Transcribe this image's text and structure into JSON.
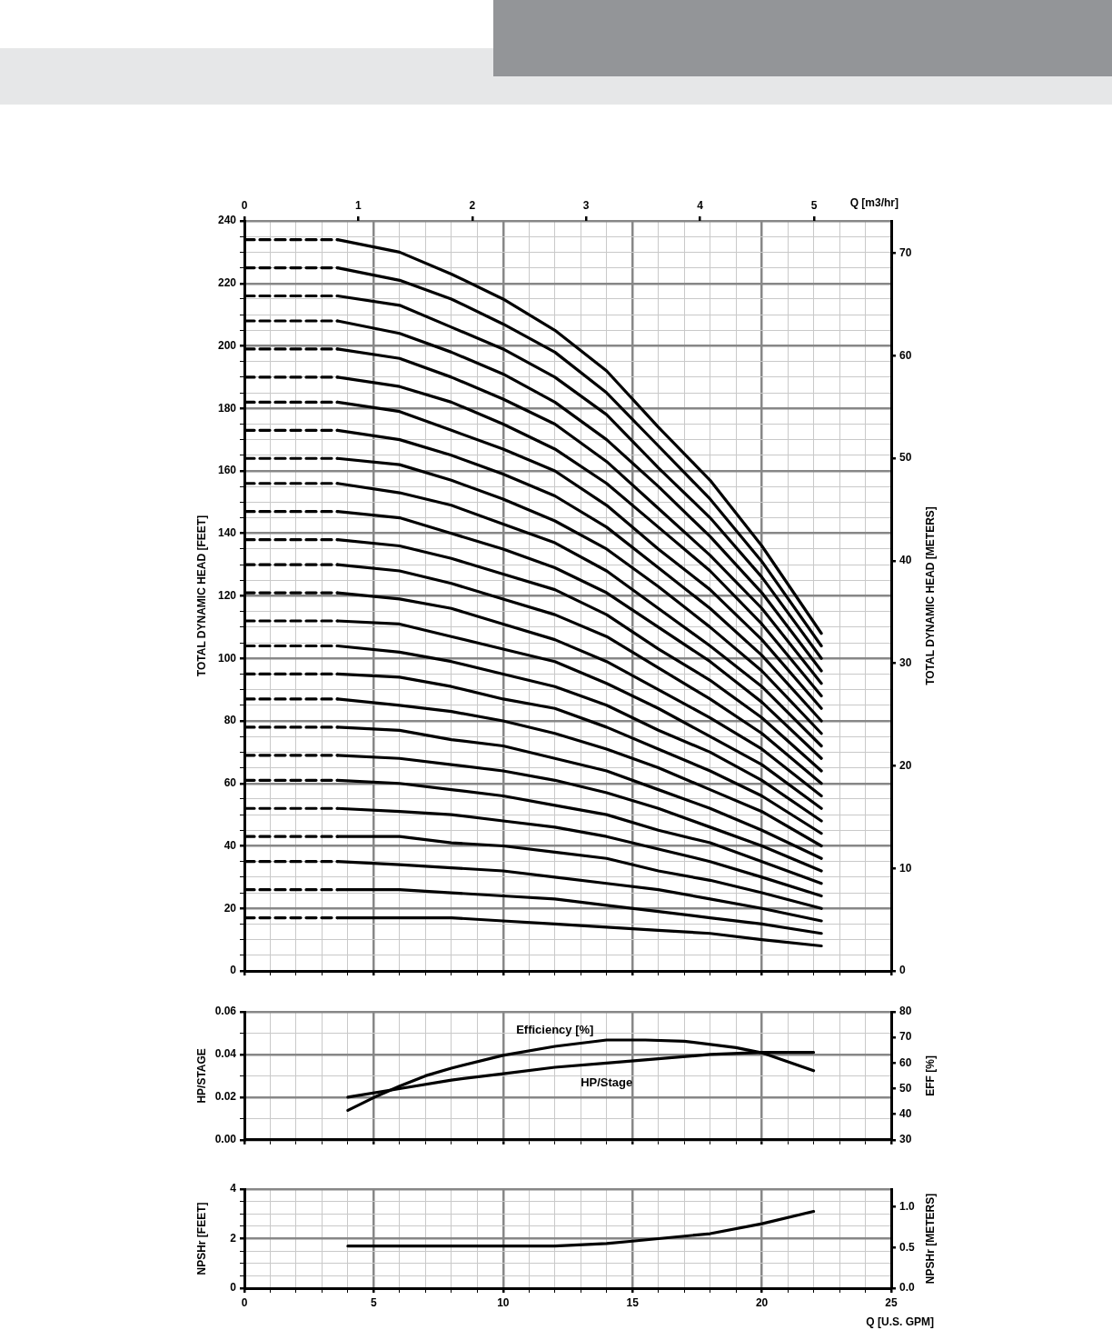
{
  "chart_data": [
    {
      "type": "line",
      "ylabel": "TOTAL DYNAMIC HEAD [FEET]",
      "y2label": "TOTAL DYNAMIC HEAD [METERS]",
      "x2label": "Q [m3/hr]",
      "grid": true,
      "marker": "none",
      "tick_labels": "y",
      "xlim": [
        0,
        25
      ],
      "xticks": [
        0,
        {
          "value": 1,
          "label": null
        },
        {
          "value": 2,
          "label": null
        },
        {
          "value": 3,
          "label": null
        },
        {
          "value": 4,
          "label": null
        },
        5,
        {
          "value": 6,
          "label": null
        },
        {
          "value": 7,
          "label": null
        },
        {
          "value": 8,
          "label": null
        },
        {
          "value": 9,
          "label": null
        },
        10,
        {
          "value": 11,
          "label": null
        },
        {
          "value": 12,
          "label": null
        },
        {
          "value": 13,
          "label": null
        },
        {
          "value": 14,
          "label": null
        },
        15,
        {
          "value": 16,
          "label": null
        },
        {
          "value": 17,
          "label": null
        },
        {
          "value": 18,
          "label": null
        },
        {
          "value": 19,
          "label": null
        },
        20,
        {
          "value": 21,
          "label": null
        },
        {
          "value": 22,
          "label": null
        },
        {
          "value": 23,
          "label": null
        },
        {
          "value": 24,
          "label": null
        },
        25
      ],
      "x2lim": [
        0,
        5.678
      ],
      "x2ticks": [
        0,
        1,
        2,
        3,
        4,
        5
      ],
      "ylim": [
        0,
        240
      ],
      "yticks": [
        0,
        {
          "value": 5,
          "label": null
        },
        {
          "value": 10,
          "label": null
        },
        {
          "value": 15,
          "label": null
        },
        20,
        {
          "value": 25,
          "label": null
        },
        {
          "value": 30,
          "label": null
        },
        {
          "value": 35,
          "label": null
        },
        40,
        {
          "value": 45,
          "label": null
        },
        {
          "value": 50,
          "label": null
        },
        {
          "value": 55,
          "label": null
        },
        60,
        {
          "value": 65,
          "label": null
        },
        {
          "value": 70,
          "label": null
        },
        {
          "value": 75,
          "label": null
        },
        80,
        {
          "value": 85,
          "label": null
        },
        {
          "value": 90,
          "label": null
        },
        {
          "value": 95,
          "label": null
        },
        100,
        {
          "value": 105,
          "label": null
        },
        {
          "value": 110,
          "label": null
        },
        {
          "value": 115,
          "label": null
        },
        120,
        {
          "value": 125,
          "label": null
        },
        {
          "value": 130,
          "label": null
        },
        {
          "value": 135,
          "label": null
        },
        140,
        {
          "value": 145,
          "label": null
        },
        {
          "value": 150,
          "label": null
        },
        {
          "value": 155,
          "label": null
        },
        160,
        {
          "value": 165,
          "label": null
        },
        {
          "value": 170,
          "label": null
        },
        {
          "value": 175,
          "label": null
        },
        180,
        {
          "value": 185,
          "label": null
        },
        {
          "value": 190,
          "label": null
        },
        {
          "value": 195,
          "label": null
        },
        200,
        {
          "value": 205,
          "label": null
        },
        {
          "value": 210,
          "label": null
        },
        {
          "value": 215,
          "label": null
        },
        220,
        {
          "value": 225,
          "label": null
        },
        {
          "value": 230,
          "label": null
        },
        {
          "value": 235,
          "label": null
        },
        240
      ],
      "y2lim": [
        0,
        73.15
      ],
      "y2ticks": [
        0,
        10,
        20,
        30,
        40,
        50,
        60,
        70
      ],
      "x": [
        3.6,
        6,
        8,
        10,
        12,
        14,
        16,
        18,
        20,
        22.3
      ],
      "series": [
        {
          "color": "#000000",
          "values": [
            17,
            17,
            17,
            16,
            15,
            14,
            13,
            12,
            10,
            8
          ]
        },
        {
          "color": "#000000",
          "values": [
            26,
            26,
            25,
            24,
            23,
            21,
            19,
            17,
            15,
            12
          ]
        },
        {
          "color": "#000000",
          "values": [
            35,
            34,
            33,
            32,
            30,
            28,
            26,
            23,
            20,
            16
          ]
        },
        {
          "color": "#000000",
          "values": [
            43,
            43,
            41,
            40,
            38,
            36,
            32,
            29,
            25,
            20
          ]
        },
        {
          "color": "#000000",
          "values": [
            52,
            51,
            50,
            48,
            46,
            43,
            39,
            35,
            30,
            24
          ]
        },
        {
          "color": "#000000",
          "values": [
            61,
            60,
            58,
            56,
            53,
            50,
            45,
            41,
            35,
            28
          ]
        },
        {
          "color": "#000000",
          "values": [
            69,
            68,
            66,
            64,
            61,
            57,
            52,
            46,
            40,
            32
          ]
        },
        {
          "color": "#000000",
          "values": [
            78,
            77,
            74,
            72,
            68,
            64,
            58,
            52,
            45,
            36
          ]
        },
        {
          "color": "#000000",
          "values": [
            87,
            85,
            83,
            80,
            76,
            71,
            65,
            58,
            51,
            40
          ]
        },
        {
          "color": "#000000",
          "values": [
            95,
            94,
            91,
            87,
            84,
            78,
            71,
            64,
            56,
            44
          ]
        },
        {
          "color": "#000000",
          "values": [
            104,
            102,
            99,
            95,
            91,
            85,
            77,
            70,
            61,
            48
          ]
        },
        {
          "color": "#000000",
          "values": [
            112,
            111,
            107,
            103,
            99,
            92,
            84,
            75,
            66,
            52
          ]
        },
        {
          "color": "#000000",
          "values": [
            121,
            119,
            116,
            111,
            106,
            99,
            90,
            81,
            71,
            56
          ]
        },
        {
          "color": "#000000",
          "values": [
            130,
            128,
            124,
            119,
            114,
            107,
            97,
            87,
            76,
            60
          ]
        },
        {
          "color": "#000000",
          "values": [
            138,
            136,
            132,
            127,
            122,
            114,
            103,
            93,
            81,
            64
          ]
        },
        {
          "color": "#000000",
          "values": [
            147,
            145,
            140,
            135,
            129,
            121,
            110,
            99,
            86,
            68
          ]
        },
        {
          "color": "#000000",
          "values": [
            156,
            153,
            149,
            143,
            137,
            128,
            116,
            104,
            91,
            72
          ]
        },
        {
          "color": "#000000",
          "values": [
            164,
            162,
            157,
            151,
            144,
            135,
            123,
            110,
            96,
            76
          ]
        },
        {
          "color": "#000000",
          "values": [
            173,
            170,
            165,
            159,
            152,
            142,
            129,
            116,
            101,
            80
          ]
        },
        {
          "color": "#000000",
          "values": [
            182,
            179,
            173,
            167,
            160,
            149,
            135,
            122,
            106,
            84
          ]
        },
        {
          "color": "#000000",
          "values": [
            190,
            187,
            182,
            175,
            167,
            156,
            142,
            128,
            111,
            88
          ]
        },
        {
          "color": "#000000",
          "values": [
            199,
            196,
            190,
            183,
            175,
            163,
            148,
            133,
            116,
            92
          ]
        },
        {
          "color": "#000000",
          "values": [
            208,
            204,
            198,
            191,
            182,
            170,
            155,
            139,
            121,
            96
          ]
        },
        {
          "color": "#000000",
          "values": [
            216,
            213,
            206,
            199,
            190,
            178,
            161,
            145,
            126,
            100
          ]
        },
        {
          "color": "#000000",
          "values": [
            225,
            221,
            215,
            207,
            198,
            185,
            168,
            151,
            131,
            104
          ]
        },
        {
          "color": "#000000",
          "values": [
            234,
            230,
            223,
            215,
            205,
            192,
            174,
            157,
            136,
            108
          ]
        },
        {
          "color": "#000000",
          "line_style": "dashed",
          "x": [
            0,
            3.6
          ],
          "values": [
            17,
            17
          ]
        },
        {
          "color": "#000000",
          "line_style": "dashed",
          "x": [
            0,
            3.6
          ],
          "values": [
            26,
            26
          ]
        },
        {
          "color": "#000000",
          "line_style": "dashed",
          "x": [
            0,
            3.6
          ],
          "values": [
            35,
            35
          ]
        },
        {
          "color": "#000000",
          "line_style": "dashed",
          "x": [
            0,
            3.6
          ],
          "values": [
            43,
            43
          ]
        },
        {
          "color": "#000000",
          "line_style": "dashed",
          "x": [
            0,
            3.6
          ],
          "values": [
            52,
            52
          ]
        },
        {
          "color": "#000000",
          "line_style": "dashed",
          "x": [
            0,
            3.6
          ],
          "values": [
            61,
            61
          ]
        },
        {
          "color": "#000000",
          "line_style": "dashed",
          "x": [
            0,
            3.6
          ],
          "values": [
            69,
            69
          ]
        },
        {
          "color": "#000000",
          "line_style": "dashed",
          "x": [
            0,
            3.6
          ],
          "values": [
            78,
            78
          ]
        },
        {
          "color": "#000000",
          "line_style": "dashed",
          "x": [
            0,
            3.6
          ],
          "values": [
            87,
            87
          ]
        },
        {
          "color": "#000000",
          "line_style": "dashed",
          "x": [
            0,
            3.6
          ],
          "values": [
            95,
            95
          ]
        },
        {
          "color": "#000000",
          "line_style": "dashed",
          "x": [
            0,
            3.6
          ],
          "values": [
            104,
            104
          ]
        },
        {
          "color": "#000000",
          "line_style": "dashed",
          "x": [
            0,
            3.6
          ],
          "values": [
            112,
            112
          ]
        },
        {
          "color": "#000000",
          "line_style": "dashed",
          "x": [
            0,
            3.6
          ],
          "values": [
            121,
            121
          ]
        },
        {
          "color": "#000000",
          "line_style": "dashed",
          "x": [
            0,
            3.6
          ],
          "values": [
            130,
            130
          ]
        },
        {
          "color": "#000000",
          "line_style": "dashed",
          "x": [
            0,
            3.6
          ],
          "values": [
            138,
            138
          ]
        },
        {
          "color": "#000000",
          "line_style": "dashed",
          "x": [
            0,
            3.6
          ],
          "values": [
            147,
            147
          ]
        },
        {
          "color": "#000000",
          "line_style": "dashed",
          "x": [
            0,
            3.6
          ],
          "values": [
            156,
            156
          ]
        },
        {
          "color": "#000000",
          "line_style": "dashed",
          "x": [
            0,
            3.6
          ],
          "values": [
            164,
            164
          ]
        },
        {
          "color": "#000000",
          "line_style": "dashed",
          "x": [
            0,
            3.6
          ],
          "values": [
            173,
            173
          ]
        },
        {
          "color": "#000000",
          "line_style": "dashed",
          "x": [
            0,
            3.6
          ],
          "values": [
            182,
            182
          ]
        },
        {
          "color": "#000000",
          "line_style": "dashed",
          "x": [
            0,
            3.6
          ],
          "values": [
            190,
            190
          ]
        },
        {
          "color": "#000000",
          "line_style": "dashed",
          "x": [
            0,
            3.6
          ],
          "values": [
            199,
            199
          ]
        },
        {
          "color": "#000000",
          "line_style": "dashed",
          "x": [
            0,
            3.6
          ],
          "values": [
            208,
            208
          ]
        },
        {
          "color": "#000000",
          "line_style": "dashed",
          "x": [
            0,
            3.6
          ],
          "values": [
            216,
            216
          ]
        },
        {
          "color": "#000000",
          "line_style": "dashed",
          "x": [
            0,
            3.6
          ],
          "values": [
            225,
            225
          ]
        },
        {
          "color": "#000000",
          "line_style": "dashed",
          "x": [
            0,
            3.6
          ],
          "values": [
            234,
            234
          ]
        }
      ]
    },
    {
      "type": "line",
      "ylabel": "HP/STAGE",
      "y2label": "EFF [%]",
      "grid": true,
      "marker": "none",
      "tick_labels": "y",
      "xlim": [
        0,
        25
      ],
      "xticks": [
        0,
        {
          "value": 1,
          "label": null
        },
        {
          "value": 2,
          "label": null
        },
        {
          "value": 3,
          "label": null
        },
        {
          "value": 4,
          "label": null
        },
        5,
        {
          "value": 6,
          "label": null
        },
        {
          "value": 7,
          "label": null
        },
        {
          "value": 8,
          "label": null
        },
        {
          "value": 9,
          "label": null
        },
        10,
        {
          "value": 11,
          "label": null
        },
        {
          "value": 12,
          "label": null
        },
        {
          "value": 13,
          "label": null
        },
        {
          "value": 14,
          "label": null
        },
        15,
        {
          "value": 16,
          "label": null
        },
        {
          "value": 17,
          "label": null
        },
        {
          "value": 18,
          "label": null
        },
        {
          "value": 19,
          "label": null
        },
        20,
        {
          "value": 21,
          "label": null
        },
        {
          "value": 22,
          "label": null
        },
        {
          "value": 23,
          "label": null
        },
        {
          "value": 24,
          "label": null
        },
        25
      ],
      "ylim": [
        0,
        0.06
      ],
      "yticks": [
        {
          "value": 0,
          "label": "0.00"
        },
        {
          "value": 0.01,
          "label": null
        },
        {
          "value": 0.02,
          "label": "0.02"
        },
        {
          "value": 0.03,
          "label": null
        },
        {
          "value": 0.04,
          "label": "0.04"
        },
        {
          "value": 0.05,
          "label": null
        },
        {
          "value": 0.06,
          "label": "0.06"
        }
      ],
      "y2lim": [
        30,
        80
      ],
      "y2ticks": [
        30,
        40,
        50,
        60,
        70,
        80
      ],
      "series": [
        {
          "name": "Efficiency [%]",
          "color": "#000000",
          "axis": "y2",
          "x": [
            4,
            5,
            6,
            7,
            8,
            10,
            12,
            14,
            15.5,
            17,
            19,
            20,
            22
          ],
          "values": [
            41.5,
            46.5,
            51,
            55,
            58,
            63,
            66.5,
            69,
            69,
            68.5,
            66,
            64,
            57
          ]
        },
        {
          "name": "HP/Stage",
          "color": "#000000",
          "x": [
            4,
            6,
            8,
            10,
            12,
            14,
            16,
            18,
            20,
            22
          ],
          "values": [
            0.02,
            0.024,
            0.028,
            0.031,
            0.034,
            0.036,
            0.038,
            0.04,
            0.041,
            0.041
          ]
        }
      ]
    },
    {
      "type": "line",
      "ylabel": "NPSHr [FEET]",
      "y2label": "NPSHr [METERS]",
      "xlabel": "Q [U.S. GPM]",
      "grid": true,
      "marker": "none",
      "xlim": [
        0,
        25
      ],
      "xticks": [
        0,
        {
          "value": 1,
          "label": null
        },
        {
          "value": 2,
          "label": null
        },
        {
          "value": 3,
          "label": null
        },
        {
          "value": 4,
          "label": null
        },
        5,
        {
          "value": 6,
          "label": null
        },
        {
          "value": 7,
          "label": null
        },
        {
          "value": 8,
          "label": null
        },
        {
          "value": 9,
          "label": null
        },
        10,
        {
          "value": 11,
          "label": null
        },
        {
          "value": 12,
          "label": null
        },
        {
          "value": 13,
          "label": null
        },
        {
          "value": 14,
          "label": null
        },
        15,
        {
          "value": 16,
          "label": null
        },
        {
          "value": 17,
          "label": null
        },
        {
          "value": 18,
          "label": null
        },
        {
          "value": 19,
          "label": null
        },
        20,
        {
          "value": 21,
          "label": null
        },
        {
          "value": 22,
          "label": null
        },
        {
          "value": 23,
          "label": null
        },
        {
          "value": 24,
          "label": null
        },
        25
      ],
      "ylim": [
        0,
        4
      ],
      "yticks": [
        0,
        {
          "value": 0.5,
          "label": null
        },
        {
          "value": 1,
          "label": null
        },
        {
          "value": 1.5,
          "label": null
        },
        2,
        {
          "value": 2.5,
          "label": null
        },
        {
          "value": 3,
          "label": null
        },
        {
          "value": 3.5,
          "label": null
        },
        4
      ],
      "y2lim": [
        0,
        1.219
      ],
      "y2ticks": [
        {
          "value": 0,
          "label": "0.0"
        },
        {
          "value": 0.5,
          "label": "0.5"
        },
        {
          "value": 1,
          "label": "1.0"
        }
      ],
      "series": [
        {
          "color": "#000000",
          "x": [
            4,
            6,
            8,
            10,
            12,
            14,
            15,
            16,
            18,
            20,
            22
          ],
          "values": [
            1.7,
            1.7,
            1.7,
            1.7,
            1.7,
            1.8,
            1.9,
            2.0,
            2.2,
            2.6,
            3.1
          ]
        }
      ]
    }
  ]
}
